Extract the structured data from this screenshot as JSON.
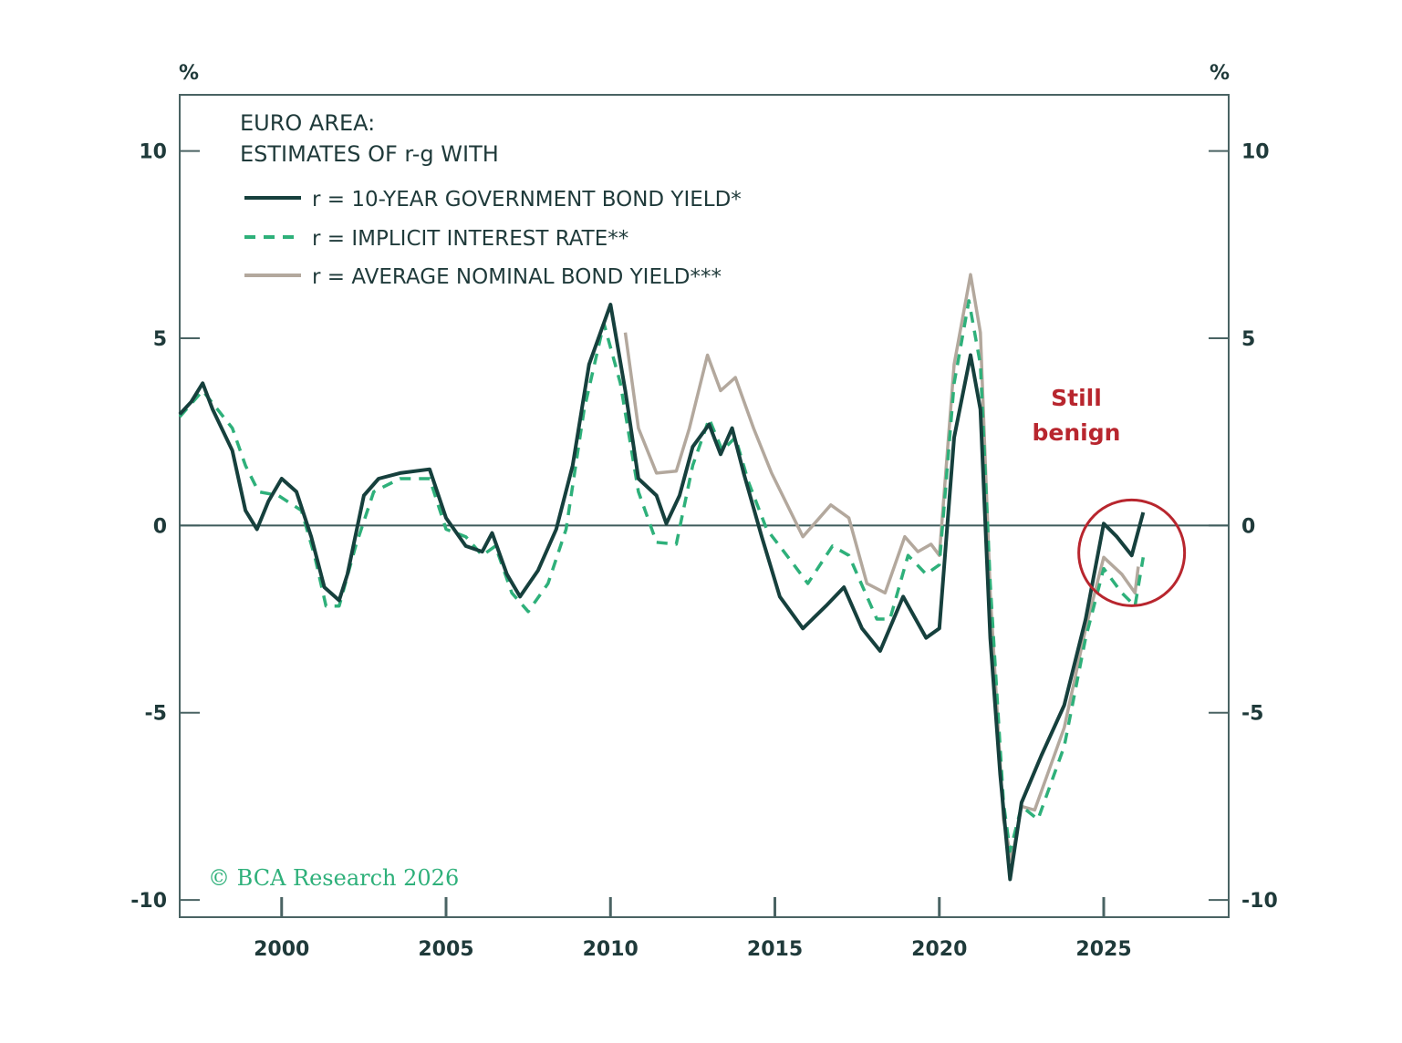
{
  "chart_data": {
    "type": "line",
    "title": "EURO AREA:",
    "subtitle": "ESTIMATES OF r-g WITH",
    "ylabel_left": "%",
    "ylabel_right": "%",
    "xlabel": "",
    "xlim": [
      1996.9,
      2028.8
    ],
    "ylim": [
      -10.46,
      11.5
    ],
    "x_ticks": [
      2000,
      2005,
      2010,
      2015,
      2020,
      2025
    ],
    "x_tick_labels": [
      "2000",
      "2005",
      "2010",
      "2015",
      "2020",
      "2025"
    ],
    "y_ticks": [
      10,
      5,
      0,
      -5,
      -10
    ],
    "y_tick_labels": [
      "10",
      "5",
      "0",
      "-5",
      "-10"
    ],
    "grid": false,
    "zero_line": true,
    "legend_position": "top-left",
    "series": [
      {
        "name": "r = 10-YEAR GOVERNMENT BOND YIELD*",
        "color": "#16403d",
        "style": "solid",
        "x": [
          1996.9,
          1997.25,
          1997.6,
          1997.9,
          1998.5,
          1998.9,
          1999.25,
          1999.6,
          2000,
          2000.45,
          2000.9,
          2001.3,
          2001.75,
          2002,
          2002.5,
          2002.95,
          2003.6,
          2004.5,
          2005,
          2005.6,
          2006.1,
          2006.4,
          2006.85,
          2007.25,
          2007.8,
          2008.35,
          2008.85,
          2009.35,
          2010,
          2010.45,
          2010.85,
          2011.4,
          2011.7,
          2012.1,
          2012.5,
          2013,
          2013.35,
          2013.7,
          2014.05,
          2014.6,
          2015.15,
          2015.85,
          2016.55,
          2017.1,
          2017.65,
          2018.2,
          2018.9,
          2019.6,
          2020,
          2020.45,
          2020.95,
          2021.25,
          2021.55,
          2021.85,
          2022.15,
          2022.5,
          2023.1,
          2023.8,
          2024.45,
          2025,
          2025.4,
          2025.85,
          2026.2
        ],
        "y": [
          2.97,
          3.3,
          3.8,
          3.1,
          2.0,
          0.4,
          -0.1,
          0.65,
          1.25,
          0.9,
          -0.3,
          -1.65,
          -2.0,
          -1.3,
          0.8,
          1.25,
          1.4,
          1.5,
          0.2,
          -0.55,
          -0.7,
          -0.2,
          -1.3,
          -1.9,
          -1.2,
          -0.1,
          1.6,
          4.3,
          5.9,
          3.6,
          1.25,
          0.8,
          0.05,
          0.8,
          2.1,
          2.7,
          1.9,
          2.6,
          1.4,
          -0.3,
          -1.9,
          -2.75,
          -2.15,
          -1.65,
          -2.75,
          -3.35,
          -1.9,
          -3.0,
          -2.75,
          2.35,
          4.55,
          3.1,
          -3.0,
          -6.65,
          -9.45,
          -7.4,
          -6.15,
          -4.8,
          -2.5,
          0.05,
          -0.3,
          -0.8,
          0.35
        ]
      },
      {
        "name": "r = IMPLICIT INTEREST RATE**",
        "color": "#2eb07a",
        "style": "dashed",
        "x": [
          1996.9,
          1997.6,
          1998.5,
          1998.9,
          1999.3,
          1999.9,
          2000.6,
          2001,
          2001.35,
          2001.75,
          2002.25,
          2002.8,
          2003.6,
          2004.5,
          2005,
          2005.6,
          2006.1,
          2006.5,
          2007,
          2007.5,
          2008.1,
          2008.65,
          2009.2,
          2009.8,
          2010.3,
          2010.85,
          2011.4,
          2012,
          2012.5,
          2013,
          2013.4,
          2013.8,
          2014.2,
          2014.75,
          2015.45,
          2016,
          2016.75,
          2017.25,
          2018.1,
          2018.5,
          2019.05,
          2019.6,
          2020,
          2020.45,
          2020.9,
          2021.25,
          2021.55,
          2021.95,
          2022.15,
          2022.5,
          2023,
          2023.8,
          2024.45,
          2025,
          2025.55,
          2025.95,
          2026.2
        ],
        "y": [
          2.9,
          3.6,
          2.6,
          1.6,
          0.9,
          0.8,
          0.4,
          -0.8,
          -2.15,
          -2.15,
          -0.55,
          0.9,
          1.25,
          1.25,
          -0.1,
          -0.3,
          -0.8,
          -0.55,
          -1.8,
          -2.3,
          -1.55,
          -0.1,
          3.1,
          5.4,
          3.8,
          0.9,
          -0.45,
          -0.5,
          1.6,
          2.85,
          2.0,
          2.35,
          1.15,
          -0.1,
          -0.9,
          -1.55,
          -0.55,
          -0.8,
          -2.5,
          -2.5,
          -0.8,
          -1.3,
          -1.05,
          3.8,
          6.0,
          4.3,
          -1.55,
          -7.4,
          -8.7,
          -7.5,
          -7.85,
          -5.9,
          -3.0,
          -1.15,
          -1.8,
          -2.15,
          -0.85
        ]
      },
      {
        "name": "r = AVERAGE NOMINAL BOND YIELD***",
        "color": "#b3a89d",
        "style": "solid",
        "x": [
          2010.45,
          2010.85,
          2011.4,
          2012,
          2012.4,
          2012.95,
          2013.35,
          2013.8,
          2014.35,
          2014.9,
          2015.85,
          2016.7,
          2017.25,
          2017.8,
          2018.35,
          2018.95,
          2019.35,
          2019.75,
          2020,
          2020.45,
          2020.95,
          2021.25,
          2021.55,
          2021.95,
          2022.2,
          2022.5,
          2022.9,
          2023.8,
          2024.45,
          2025,
          2025.55,
          2025.95,
          2026.05
        ],
        "y": [
          5.15,
          2.6,
          1.4,
          1.45,
          2.6,
          4.55,
          3.6,
          3.95,
          2.6,
          1.4,
          -0.3,
          0.55,
          0.2,
          -1.55,
          -1.8,
          -0.3,
          -0.7,
          -0.5,
          -0.8,
          4.3,
          6.7,
          5.15,
          -1.8,
          -7.85,
          -8.95,
          -7.5,
          -7.6,
          -5.4,
          -2.75,
          -0.85,
          -1.3,
          -1.8,
          -1.1
        ]
      }
    ],
    "annotations": {
      "label_line1": "Still",
      "label_line2": "benign",
      "color": "#b8262e",
      "circle_center": [
        2025.85,
        -0.73
      ]
    },
    "watermark": "© BCA Research 2026"
  }
}
